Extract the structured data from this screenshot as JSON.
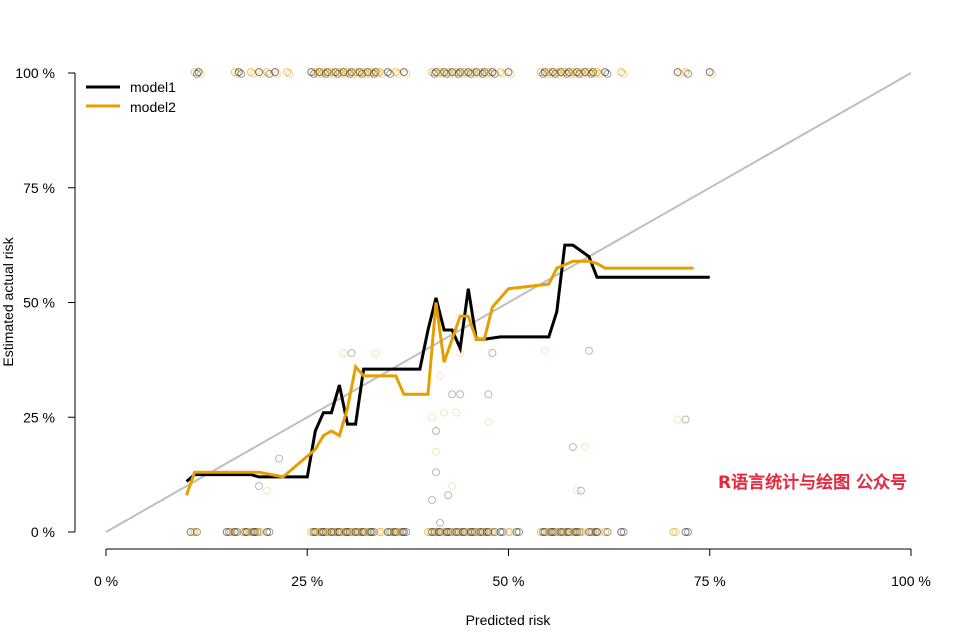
{
  "chart_data": {
    "type": "line",
    "xlabel": "Predicted risk",
    "ylabel": "Estimated actual risk",
    "xlim": [
      0,
      100
    ],
    "ylim": [
      0,
      100
    ],
    "x_ticks": [
      "0 %",
      "25 %",
      "50 %",
      "75 %",
      "100 %"
    ],
    "y_ticks": [
      "0 %",
      "25 %",
      "50 %",
      "75 %",
      "100 %"
    ],
    "legend_position": "top-left",
    "reference_line": {
      "x": [
        0,
        100
      ],
      "y": [
        0,
        100
      ],
      "color": "#bebebe"
    },
    "series": [
      {
        "name": "model1",
        "color": "#000000",
        "x": [
          10,
          11,
          12,
          14,
          18,
          19,
          22,
          25,
          26,
          27,
          28,
          29,
          30,
          31,
          32,
          33,
          37,
          39,
          40,
          41,
          42,
          43,
          44,
          45,
          46,
          47,
          49,
          55,
          56,
          57,
          58,
          60,
          61,
          75
        ],
        "y": [
          11,
          12.5,
          12.5,
          12.5,
          12.5,
          12,
          12,
          12,
          22,
          26,
          26,
          32,
          23.5,
          23.5,
          35.5,
          35.5,
          35.5,
          35.5,
          44,
          51,
          44,
          44,
          40,
          53,
          42,
          42,
          42.5,
          42.5,
          48,
          62.5,
          62.5,
          60,
          55.5,
          55.5
        ]
      },
      {
        "name": "model2",
        "color": "#e69f00",
        "x": [
          10,
          11,
          14,
          19,
          22,
          24,
          26,
          27,
          28,
          29,
          30,
          31,
          32,
          33,
          36,
          37,
          40,
          41,
          42,
          43,
          44,
          45,
          46,
          47,
          48,
          50,
          55,
          56,
          58,
          60,
          61,
          62,
          73
        ],
        "y": [
          8,
          13,
          13,
          13,
          12,
          15,
          18,
          21,
          22,
          21,
          27,
          36,
          34,
          34,
          34,
          30,
          30,
          50,
          37,
          42,
          47,
          47,
          42,
          42,
          49,
          53,
          54,
          57.5,
          59,
          59,
          58.5,
          57.5,
          57.5
        ]
      }
    ],
    "rug_points": {
      "top_y": 100,
      "bottom_y": 0,
      "top_x": [
        11,
        11.5,
        16,
        16.5,
        18,
        19,
        20,
        21,
        22.5,
        25.5,
        26,
        26.5,
        27,
        27.5,
        28,
        28.5,
        29,
        29.5,
        30,
        30.5,
        31,
        31.5,
        32,
        32.5,
        33,
        33.5,
        34,
        35,
        36,
        37,
        40.5,
        41,
        41.5,
        42,
        42.5,
        43,
        43.5,
        44,
        44.5,
        45,
        45.5,
        46,
        46.5,
        47,
        47.5,
        48,
        49,
        50,
        54,
        54.5,
        55,
        55.5,
        56,
        56.5,
        57,
        57.5,
        58,
        58.5,
        59,
        59.5,
        60,
        60.5,
        61,
        62,
        64,
        71,
        72,
        75
      ],
      "bottom_x": [
        10.5,
        11,
        15,
        15.5,
        16,
        17,
        17.5,
        18,
        18.5,
        19,
        20,
        25.5,
        26,
        26.5,
        27,
        27.5,
        28,
        28.5,
        29,
        29.5,
        30,
        30.5,
        31,
        31.5,
        32,
        32.5,
        33,
        34,
        35,
        35.5,
        36,
        36.5,
        37,
        40,
        40.5,
        41,
        41.5,
        42,
        42.5,
        43,
        43.5,
        44,
        44.5,
        45,
        45.5,
        46,
        46.5,
        47,
        47.5,
        48,
        49,
        50,
        51,
        54,
        54.5,
        55,
        55.5,
        56,
        56.5,
        57,
        57.5,
        58,
        58.5,
        59,
        60,
        60.5,
        61,
        62,
        64,
        70.5,
        72
      ],
      "mid_points": [
        [
          19,
          10
        ],
        [
          20,
          9
        ],
        [
          21.5,
          16
        ],
        [
          29.5,
          39
        ],
        [
          30.5,
          39
        ],
        [
          33.5,
          39
        ],
        [
          40.5,
          7
        ],
        [
          40.5,
          25
        ],
        [
          41,
          22
        ],
        [
          41,
          17.5
        ],
        [
          41,
          13
        ],
        [
          41.5,
          34
        ],
        [
          41.5,
          2
        ],
        [
          42,
          26
        ],
        [
          42.5,
          8
        ],
        [
          43,
          10
        ],
        [
          43,
          30
        ],
        [
          43.5,
          26
        ],
        [
          44,
          30
        ],
        [
          44,
          39
        ],
        [
          47.5,
          30
        ],
        [
          47.5,
          24
        ],
        [
          48,
          39
        ],
        [
          54.5,
          39.5
        ],
        [
          58,
          18.5
        ],
        [
          58.5,
          9
        ],
        [
          59,
          9
        ],
        [
          59.5,
          18.5
        ],
        [
          60,
          39.5
        ],
        [
          71,
          24.5
        ],
        [
          72,
          24.5
        ]
      ]
    }
  },
  "watermark": "R语言统计与绘图 公众号"
}
